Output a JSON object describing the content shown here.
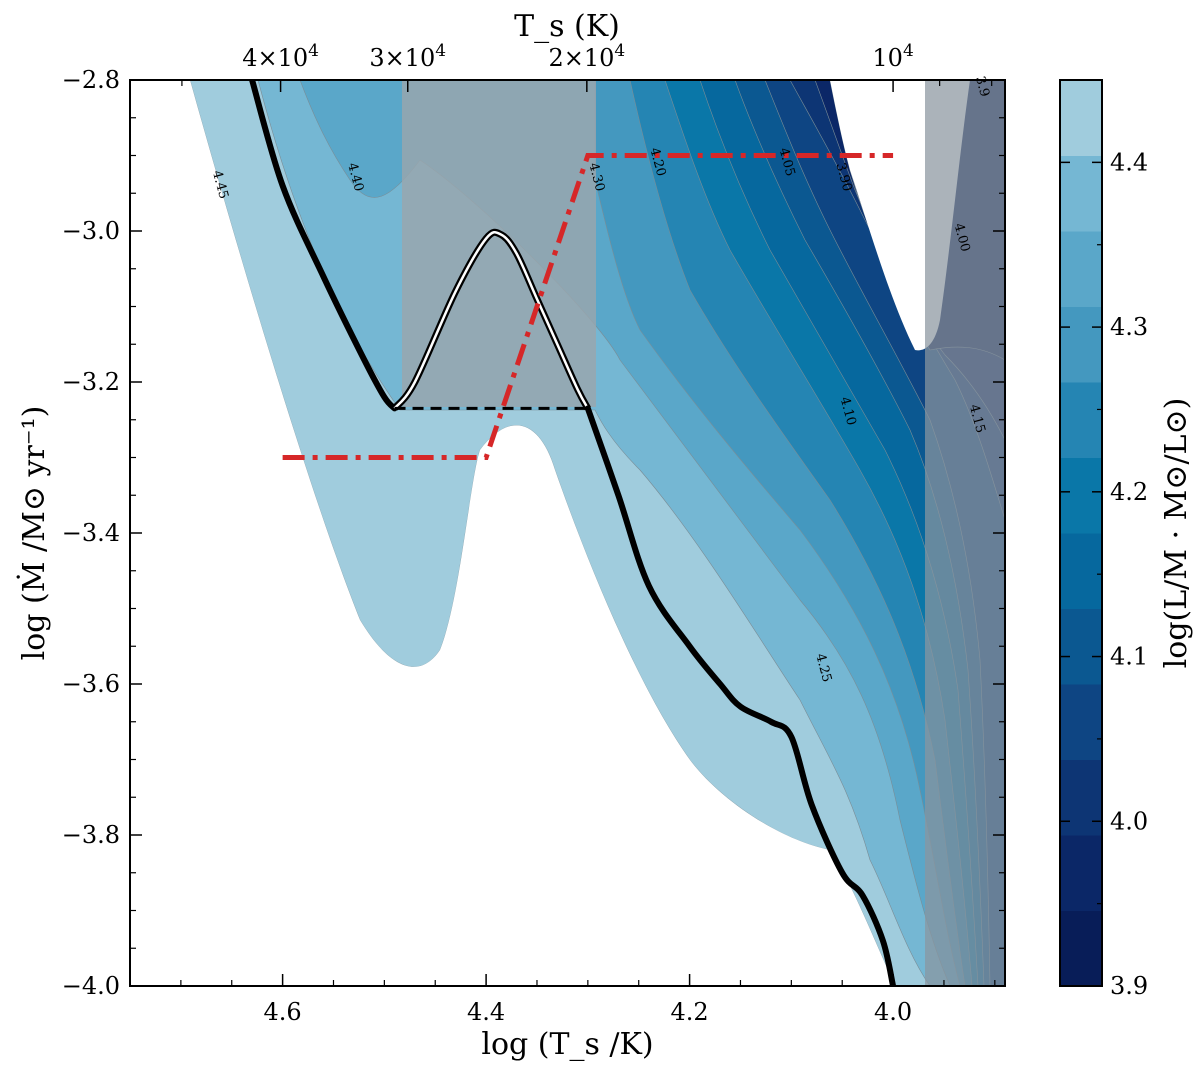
{
  "chart_data": {
    "type": "contourf",
    "xlabel": "log (T_s /K)",
    "ylabel": "log (Ṁ /M⊙ yr⁻¹)",
    "top_xlabel": "T_s (K)",
    "colorbar_label": "log(L/M · M⊙/L⊙)",
    "xlim": [
      4.75,
      3.89
    ],
    "ylim": [
      -4.0,
      -2.8
    ],
    "x_ticks": [
      4.6,
      4.4,
      4.2,
      4.0
    ],
    "x_ticklabels": [
      "4.6",
      "4.4",
      "4.2",
      "4.0"
    ],
    "y_ticks": [
      -4.0,
      -3.8,
      -3.6,
      -3.4,
      -3.2,
      -3.0,
      -2.8
    ],
    "y_ticklabels": [
      "−4.0",
      "−3.8",
      "−3.6",
      "−3.4",
      "−3.2",
      "−3.0",
      "−2.8"
    ],
    "top_ticks": [
      {
        "value": 4.602,
        "mant": "4",
        "exp": "4"
      },
      {
        "value": 4.477,
        "mant": "3",
        "exp": "4"
      },
      {
        "value": 4.301,
        "mant": "2",
        "exp": "4"
      },
      {
        "value": 4.0,
        "mant": "",
        "exp": "4"
      }
    ],
    "colorbar_range": [
      3.9,
      4.45
    ],
    "colorbar_ticks": [
      3.9,
      4.0,
      4.1,
      4.2,
      4.3,
      4.4
    ],
    "colorbar_ticklabels": [
      "3.9",
      "4.0",
      "4.1",
      "4.2",
      "4.3",
      "4.4"
    ],
    "colorbar_colors": [
      "#081d58",
      "#0b2767",
      "#0d3574",
      "#0e4583",
      "#0b5891",
      "#06689e",
      "#0a77a8",
      "#2585b3",
      "#4498bf",
      "#5aa7c9",
      "#75b7d3",
      "#a0ccdd"
    ],
    "contour_labels": [
      {
        "text": "4.45",
        "x": 4.665,
        "y": -2.94
      },
      {
        "text": "4.40",
        "x": 4.532,
        "y": -2.93
      },
      {
        "text": "4.30",
        "x": 4.295,
        "y": -2.93
      },
      {
        "text": "4.20",
        "x": 4.235,
        "y": -2.91
      },
      {
        "text": "4.05",
        "x": 4.108,
        "y": -2.91
      },
      {
        "text": "3.90",
        "x": 4.052,
        "y": -2.93
      },
      {
        "text": "4.00",
        "x": 3.936,
        "y": -3.01
      },
      {
        "text": "4.10",
        "x": 4.048,
        "y": -3.24
      },
      {
        "text": "4.15",
        "x": 3.921,
        "y": -3.25
      },
      {
        "text": "4.25",
        "x": 4.072,
        "y": -3.58
      },
      {
        "text": "3.9",
        "x": 3.916,
        "y": -2.81
      }
    ],
    "series": [
      {
        "name": "solution curve",
        "style": "black thick",
        "x": [
          4.63,
          4.6,
          4.56,
          4.52,
          4.5,
          4.49
        ],
        "y": [
          -2.8,
          -2.94,
          -3.06,
          -3.17,
          -3.22,
          -3.235
        ]
      },
      {
        "name": "unstable branch",
        "style": "black with white outline",
        "x": [
          4.49,
          4.47,
          4.43,
          4.4,
          4.385,
          4.37,
          4.35,
          4.33,
          4.31,
          4.3
        ],
        "y": [
          -3.235,
          -3.2,
          -3.08,
          -3.01,
          -3.005,
          -3.03,
          -3.09,
          -3.15,
          -3.21,
          -3.235
        ]
      },
      {
        "name": "jump",
        "style": "black dashed",
        "x": [
          4.49,
          4.3
        ],
        "y": [
          -3.235,
          -3.235
        ]
      },
      {
        "name": "lower branch",
        "style": "black thick",
        "x": [
          4.3,
          4.27,
          4.24,
          4.2,
          4.17,
          4.15,
          4.12,
          4.1,
          4.08,
          4.05,
          4.03,
          4.01,
          4.0
        ],
        "y": [
          -3.235,
          -3.35,
          -3.47,
          -3.55,
          -3.6,
          -3.63,
          -3.65,
          -3.67,
          -3.76,
          -3.85,
          -3.88,
          -3.94,
          -4.0
        ]
      },
      {
        "name": "prescription",
        "style": "red dash-dot",
        "x": [
          4.6,
          4.4,
          4.3,
          4.0
        ],
        "y": [
          -3.3,
          -3.3,
          -2.9,
          -2.9
        ]
      }
    ]
  }
}
